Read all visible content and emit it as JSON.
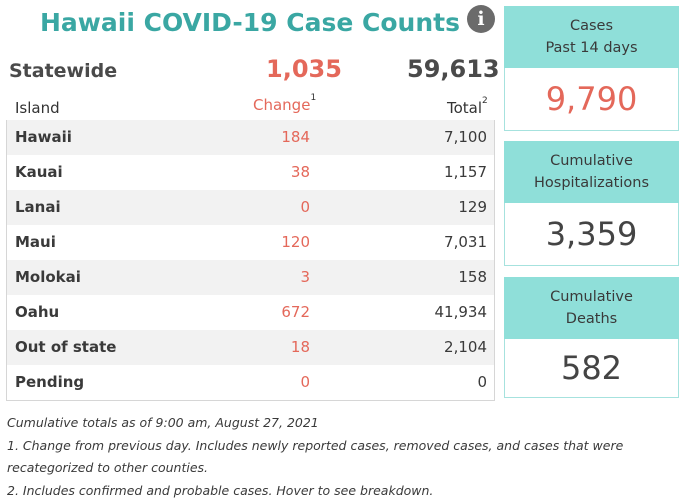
{
  "title": "Hawaii COVID-19 Case Counts",
  "info_icon": "info-icon",
  "statewide": {
    "label": "Statewide",
    "change": "1,035",
    "total": "59,613"
  },
  "headers": {
    "island": "Island",
    "change": "Change",
    "change_sup": "1",
    "total": "Total",
    "total_sup": "2"
  },
  "rows": [
    {
      "name": "Hawaii",
      "change": "184",
      "total": "7,100"
    },
    {
      "name": "Kauai",
      "change": "38",
      "total": "1,157"
    },
    {
      "name": "Lanai",
      "change": "0",
      "total": "129"
    },
    {
      "name": "Maui",
      "change": "120",
      "total": "7,031"
    },
    {
      "name": "Molokai",
      "change": "3",
      "total": "158"
    },
    {
      "name": "Oahu",
      "change": "672",
      "total": "41,934"
    },
    {
      "name": "Out of state",
      "change": "18",
      "total": "2,104"
    },
    {
      "name": "Pending",
      "change": "0",
      "total": "0"
    }
  ],
  "notes": {
    "line1": "Cumulative totals as of 9:00 am, August 27, 2021",
    "line2": "1. Change from previous day. Includes newly reported cases, removed cases, and cases that were",
    "line3": "recategorized to other counties.",
    "line4": "2. Includes confirmed and probable cases. Hover to see breakdown."
  },
  "cards": [
    {
      "line1": "Cases",
      "line2": "Past 14 days",
      "value": "9,790",
      "color": "#e4685a"
    },
    {
      "line1": "Cumulative",
      "line2": "Hospitalizations",
      "value": "3,359",
      "color": "#444444"
    },
    {
      "line1": "Cumulative",
      "line2": "Deaths",
      "value": "582",
      "color": "#444444"
    }
  ],
  "colors": {
    "accent": "#3aa7a3",
    "change": "#e4685a",
    "card_header": "#8fdfd9"
  }
}
